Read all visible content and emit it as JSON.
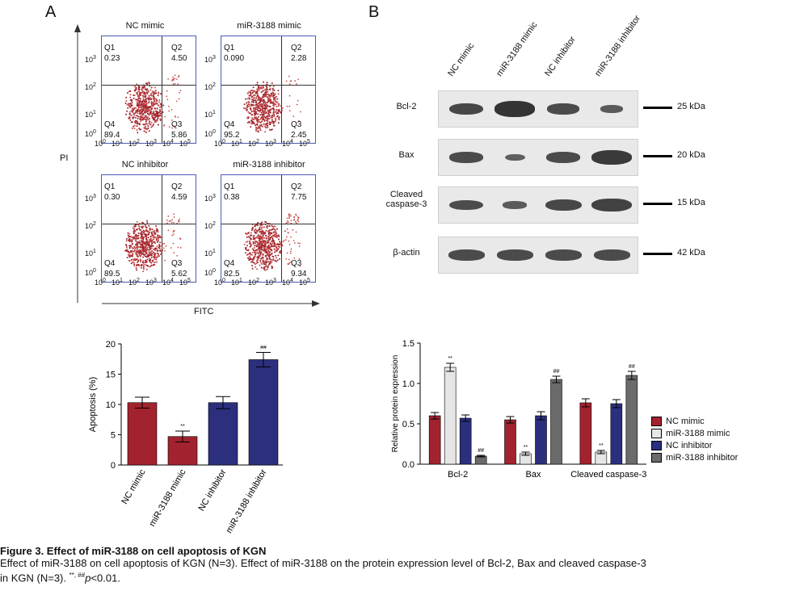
{
  "panelA": {
    "letter": "A",
    "y_axis_label": "PI",
    "x_axis_label": "FITC",
    "plots": [
      {
        "title": "NC mimic",
        "q1": "Q1",
        "q1v": "0.23",
        "q2": "Q2",
        "q2v": "4.50",
        "q3": "Q3",
        "q3v": "5.86",
        "q4": "Q4",
        "q4v": "89.4"
      },
      {
        "title": "miR-3188 mimic",
        "q1": "Q1",
        "q1v": "0.090",
        "q2": "Q2",
        "q2v": "2.28",
        "q3": "Q3",
        "q3v": "2.45",
        "q4": "Q4",
        "q4v": "95.2"
      },
      {
        "title": "NC inhibitor",
        "q1": "Q1",
        "q1v": "0.30",
        "q2": "Q2",
        "q2v": "4.59",
        "q3": "Q3",
        "q3v": "5.62",
        "q4": "Q4",
        "q4v": "89.5"
      },
      {
        "title": "miR-3188 inhibitor",
        "q1": "Q1",
        "q1v": "0.38",
        "q2": "Q2",
        "q2v": "7.75",
        "q3": "Q3",
        "q3v": "9.34",
        "q4": "Q4",
        "q4v": "82.5"
      }
    ],
    "axis_ticks": {
      "t0": "10",
      "t1": "10",
      "t2": "10",
      "t3": "10",
      "t4": "10",
      "t5": "10",
      "e0": "0",
      "e1": "1",
      "e2": "2",
      "e3": "3",
      "e4": "4",
      "e5": "5"
    }
  },
  "panelB": {
    "letter": "B",
    "lanes": [
      "NC mimic",
      "miR-3188 mimic",
      "NC inhibitor",
      "miR-3188 inhibitor"
    ],
    "proteins": [
      {
        "name": "Bcl-2",
        "size": "25 kDa"
      },
      {
        "name": "Bax",
        "size": "20 kDa"
      },
      {
        "name": "Cleaved\ncaspase-3",
        "size": "15 kDa"
      },
      {
        "name": "β-actin",
        "size": "42 kDa"
      }
    ]
  },
  "chart_data": [
    {
      "type": "bar",
      "categories": [
        "NC mimic",
        "miR-3188 mimic",
        "NC inhibitor",
        "miR-3188 inhibitor"
      ],
      "values": [
        10.3,
        4.7,
        10.3,
        17.4
      ],
      "errors": [
        0.9,
        0.9,
        1.0,
        1.2
      ],
      "significance": [
        "",
        "**",
        "",
        "##"
      ],
      "colors": [
        "#a2232f",
        "#a2232f",
        "#2b2f7e",
        "#2b2f7e"
      ],
      "ylabel": "Apoptosis (%)",
      "ylim": [
        0,
        20
      ],
      "yticks": [
        "0",
        "5",
        "10",
        "15",
        "20"
      ]
    },
    {
      "type": "bar",
      "categories": [
        "Bcl-2",
        "Bax",
        "Cleaved caspase-3"
      ],
      "series": [
        {
          "name": "NC mimic",
          "color": "#a2232f",
          "values": [
            0.6,
            0.55,
            0.76
          ],
          "errors": [
            0.04,
            0.04,
            0.05
          ],
          "sig": [
            "",
            "",
            ""
          ]
        },
        {
          "name": "miR-3188 mimic",
          "color": "#e6e6e6",
          "values": [
            1.2,
            0.13,
            0.15
          ],
          "errors": [
            0.05,
            0.02,
            0.02
          ],
          "sig": [
            "**",
            "**",
            "**"
          ]
        },
        {
          "name": "NC inhibitor",
          "color": "#2b2f7e",
          "values": [
            0.57,
            0.6,
            0.75
          ],
          "errors": [
            0.04,
            0.05,
            0.05
          ],
          "sig": [
            "",
            "",
            ""
          ]
        },
        {
          "name": "miR-3188 inhibitor",
          "color": "#6b6b6b",
          "values": [
            0.1,
            1.05,
            1.1
          ],
          "errors": [
            0.01,
            0.04,
            0.05
          ],
          "sig": [
            "##",
            "##",
            "##"
          ]
        }
      ],
      "ylabel": "Relative protein expression",
      "ylim": [
        0,
        1.5
      ],
      "yticks": [
        "0.0",
        "0.5",
        "1.0",
        "1.5"
      ],
      "legend": "right"
    }
  ],
  "caption": {
    "title": "Figure 3. Effect of miR-3188 on cell apoptosis of KGN",
    "line1": "Effect of miR-3188 on cell apoptosis of KGN (N=3). Effect of miR-3188 on the protein expression level of Bcl-2, Bax and cleaved caspase-3",
    "line2_prefix": "in KGN (N=3). ",
    "line2_sig": "**, ##",
    "line2_p": "p",
    "line2_suffix": "<0.01."
  }
}
